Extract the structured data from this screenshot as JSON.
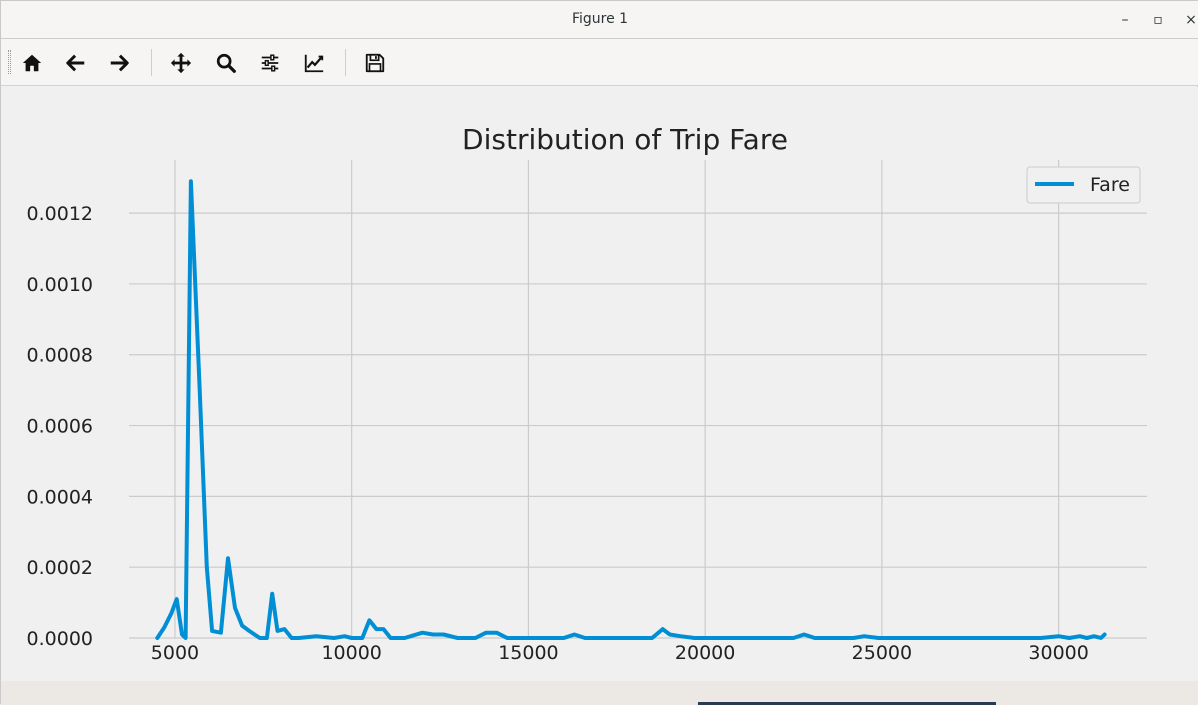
{
  "window": {
    "title": "Figure 1",
    "minimize": "–",
    "maximize": "▫",
    "close": "×"
  },
  "toolbar": {
    "buttons": [
      {
        "name": "home-icon",
        "tooltip": "Reset original view"
      },
      {
        "name": "back-arrow-icon",
        "tooltip": "Back to previous view"
      },
      {
        "name": "forward-arrow-icon",
        "tooltip": "Forward to next view"
      },
      {
        "name": "pan-icon",
        "tooltip": "Pan axes"
      },
      {
        "name": "zoom-icon",
        "tooltip": "Zoom to rectangle"
      },
      {
        "name": "subplots-icon",
        "tooltip": "Configure subplots"
      },
      {
        "name": "edit-axes-icon",
        "tooltip": "Edit axis"
      },
      {
        "name": "save-icon",
        "tooltip": "Save the figure"
      }
    ]
  },
  "chart_data": {
    "type": "line",
    "title": "Distribution of Trip Fare",
    "xlabel": "",
    "ylabel": "",
    "xlim": [
      3700,
      32500
    ],
    "ylim": [
      0,
      0.00135
    ],
    "xticks": [
      5000,
      10000,
      15000,
      20000,
      25000,
      30000
    ],
    "yticks": [
      0,
      0.0002,
      0.0004,
      0.0006,
      0.0008,
      0.001,
      0.0012
    ],
    "ytick_labels": [
      "0.0000",
      "0.0002",
      "0.0004",
      "0.0006",
      "0.0008",
      "0.0010",
      "0.0012"
    ],
    "grid": true,
    "legend_position": "top-right",
    "series": [
      {
        "name": "Fare",
        "color": "#008fd5",
        "x": [
          4500,
          4700,
          4900,
          5050,
          5200,
          5300,
          5450,
          5700,
          5900,
          6050,
          6300,
          6500,
          6700,
          6900,
          7100,
          7400,
          7600,
          7750,
          7900,
          8100,
          8300,
          8500,
          9000,
          9500,
          9800,
          10000,
          10300,
          10500,
          10700,
          10900,
          11100,
          11500,
          12000,
          12300,
          12600,
          13000,
          13500,
          13800,
          14100,
          14400,
          14800,
          15500,
          16000,
          16300,
          16600,
          17000,
          18000,
          18500,
          18800,
          19000,
          19300,
          19700,
          20500,
          21500,
          22500,
          22800,
          23100,
          23500,
          24200,
          24500,
          24900,
          25500,
          26500,
          27500,
          28500,
          29500,
          30000,
          30300,
          30600,
          30800,
          31000,
          31200,
          31300
        ],
        "values": [
          0,
          3e-05,
          7e-05,
          0.00011,
          1e-05,
          0,
          0.00129,
          0.0007,
          0.0002,
          2e-05,
          1.5e-05,
          0.000225,
          8.5e-05,
          3.5e-05,
          2e-05,
          0,
          0,
          0.000125,
          2e-05,
          2.5e-05,
          0,
          0,
          5e-06,
          0,
          5e-06,
          0,
          0,
          5e-05,
          2.5e-05,
          2.5e-05,
          0,
          0,
          1.5e-05,
          1e-05,
          1e-05,
          0,
          0,
          1.5e-05,
          1.5e-05,
          0,
          0,
          0,
          0,
          1e-05,
          0,
          0,
          0,
          0,
          2.5e-05,
          1e-05,
          5e-06,
          0,
          0,
          0,
          0,
          1e-05,
          0,
          0,
          0,
          5e-06,
          0,
          0,
          0,
          0,
          0,
          0,
          5e-06,
          0,
          5e-06,
          0,
          5e-06,
          0,
          1e-05
        ]
      }
    ]
  }
}
